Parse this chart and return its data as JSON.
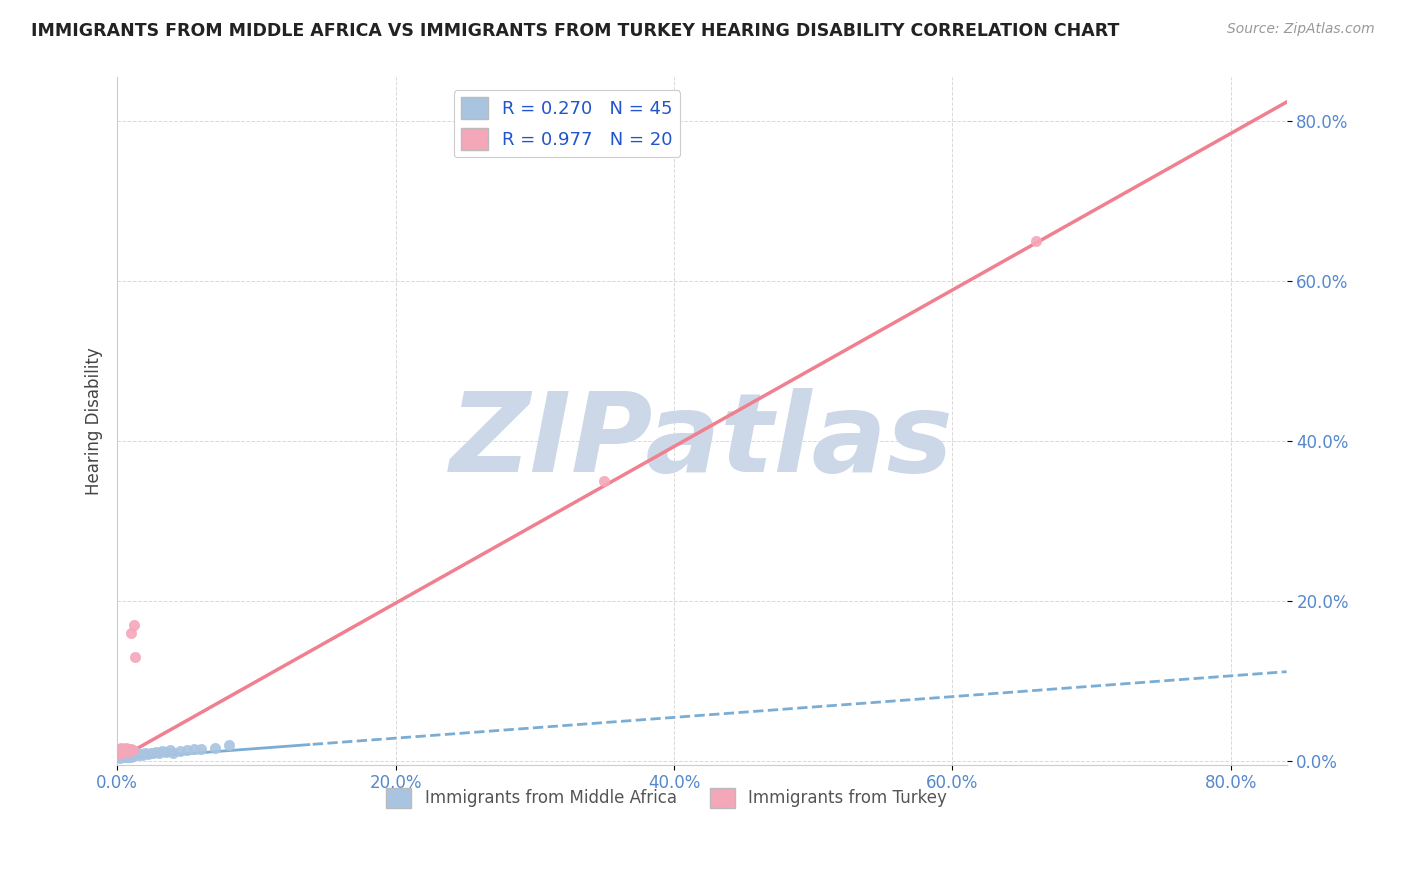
{
  "title": "IMMIGRANTS FROM MIDDLE AFRICA VS IMMIGRANTS FROM TURKEY HEARING DISABILITY CORRELATION CHART",
  "source_text": "Source: ZipAtlas.com",
  "ylabel": "Hearing Disability",
  "legend_label_1": "Immigrants from Middle Africa",
  "legend_label_2": "Immigrants from Turkey",
  "r1": 0.27,
  "n1": 45,
  "r2": 0.977,
  "n2": 20,
  "color1": "#a8c4e0",
  "color2": "#f4a7b9",
  "line_color1": "#7aadd4",
  "line_color2": "#f08090",
  "background_color": "#ffffff",
  "watermark_text": "ZIPatlas",
  "watermark_color": "#ccd8e8",
  "xlim": [
    0.0,
    0.84
  ],
  "ylim": [
    -0.005,
    0.855
  ],
  "xticks": [
    0.0,
    0.2,
    0.4,
    0.6,
    0.8
  ],
  "yticks": [
    0.0,
    0.2,
    0.4,
    0.6,
    0.8
  ],
  "middle_africa_x": [
    0.001,
    0.001,
    0.002,
    0.002,
    0.003,
    0.003,
    0.003,
    0.004,
    0.004,
    0.005,
    0.005,
    0.005,
    0.006,
    0.006,
    0.007,
    0.007,
    0.008,
    0.008,
    0.009,
    0.01,
    0.01,
    0.011,
    0.012,
    0.013,
    0.014,
    0.015,
    0.015,
    0.016,
    0.018,
    0.02,
    0.022,
    0.024,
    0.026,
    0.028,
    0.03,
    0.032,
    0.035,
    0.038,
    0.04,
    0.045,
    0.05,
    0.055,
    0.06,
    0.07,
    0.08
  ],
  "middle_africa_y": [
    0.004,
    0.006,
    0.003,
    0.005,
    0.004,
    0.006,
    0.007,
    0.005,
    0.007,
    0.004,
    0.006,
    0.008,
    0.005,
    0.007,
    0.006,
    0.008,
    0.005,
    0.007,
    0.006,
    0.005,
    0.007,
    0.006,
    0.008,
    0.007,
    0.009,
    0.007,
    0.01,
    0.008,
    0.007,
    0.009,
    0.008,
    0.01,
    0.009,
    0.011,
    0.01,
    0.012,
    0.011,
    0.013,
    0.01,
    0.012,
    0.013,
    0.014,
    0.015,
    0.016,
    0.02
  ],
  "middle_africa_line": [
    0.003,
    0.012
  ],
  "turkey_x": [
    0.001,
    0.001,
    0.002,
    0.002,
    0.003,
    0.003,
    0.004,
    0.005,
    0.006,
    0.006,
    0.007,
    0.008,
    0.009,
    0.01,
    0.01,
    0.011,
    0.012,
    0.013,
    0.35,
    0.66
  ],
  "turkey_y": [
    0.01,
    0.015,
    0.008,
    0.013,
    0.01,
    0.016,
    0.012,
    0.014,
    0.011,
    0.016,
    0.013,
    0.015,
    0.012,
    0.014,
    0.16,
    0.013,
    0.17,
    0.13,
    0.35,
    0.65
  ],
  "turkey_line_slope": 0.98,
  "turkey_line_intercept": 0.001,
  "ma_line_slope": 0.13,
  "ma_line_intercept": 0.002
}
